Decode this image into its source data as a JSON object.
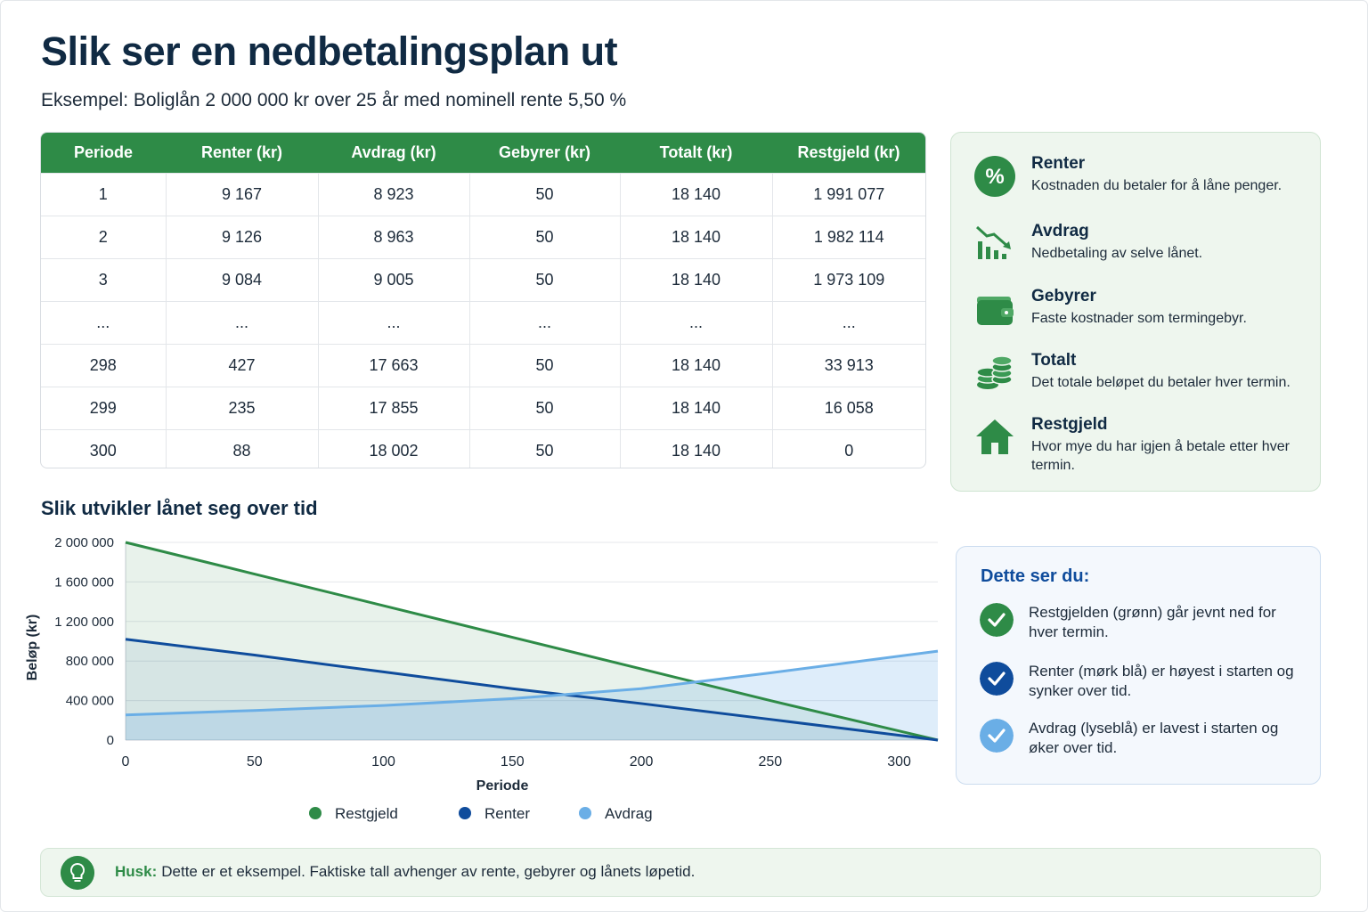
{
  "header": {
    "title": "Slik ser en nedbetalingsplan ut",
    "subtitle": "Eksempel: Boliglån 2 000 000 kr over 25 år med nominell rente 5,50 %"
  },
  "table": {
    "headers": [
      "Periode",
      "Renter (kr)",
      "Avdrag (kr)",
      "Gebyrer (kr)",
      "Totalt (kr)",
      "Restgjeld (kr)"
    ],
    "rows": [
      [
        "1",
        "9 167",
        "8 923",
        "50",
        "18 140",
        "1 991 077"
      ],
      [
        "2",
        "9 126",
        "8 963",
        "50",
        "18 140",
        "1 982 114"
      ],
      [
        "3",
        "9 084",
        "9 005",
        "50",
        "18 140",
        "1 973 109"
      ],
      [
        "...",
        "...",
        "...",
        "...",
        "...",
        "..."
      ],
      [
        "298",
        "427",
        "17 663",
        "50",
        "18 140",
        "33 913"
      ],
      [
        "299",
        "235",
        "17 855",
        "50",
        "18 140",
        "16 058"
      ],
      [
        "300",
        "88",
        "18 002",
        "50",
        "18 140",
        "0"
      ]
    ]
  },
  "legend_panel": {
    "items": [
      {
        "icon": "percent-icon",
        "title": "Renter",
        "desc": "Kostnaden du betaler for å låne penger."
      },
      {
        "icon": "chart-down-icon",
        "title": "Avdrag",
        "desc": "Nedbetaling av selve lånet."
      },
      {
        "icon": "wallet-icon",
        "title": "Gebyrer",
        "desc": "Faste kostnader som termingebyr."
      },
      {
        "icon": "coins-icon",
        "title": "Totalt",
        "desc": "Det totale beløpet du betaler hver termin."
      },
      {
        "icon": "house-icon",
        "title": "Restgjeld",
        "desc": "Hvor mye du har igjen å betale etter hver termin."
      }
    ]
  },
  "observations": {
    "title": "Dette ser du:",
    "items": [
      {
        "color": "#2e8b47",
        "text": "Restgjelden (grønn) går jevnt ned for hver termin."
      },
      {
        "color": "#0f4c9c",
        "text": "Renter (mørk blå) er høyest i starten og synker over tid."
      },
      {
        "color": "#6aaee6",
        "text": "Avdrag (lyseblå) er lavest i starten og øker over tid."
      }
    ]
  },
  "note": {
    "label": "Husk:",
    "text": "Dette er et eksempel. Faktiske tall avhenger av rente, gebyrer og lånets løpetid."
  },
  "colors": {
    "green": "#2e8b47",
    "dark_blue": "#0f4c9c",
    "light_blue": "#6aaee6"
  },
  "chart_data": {
    "type": "area",
    "title": "Slik utvikler lånet seg over tid",
    "xlabel": "Periode",
    "ylabel": "Beløp (kr)",
    "xlim": [
      0,
      315
    ],
    "ylim": [
      0,
      2000000
    ],
    "x_ticks": [
      0,
      50,
      100,
      150,
      200,
      250,
      300
    ],
    "y_ticks": [
      0,
      400000,
      800000,
      1200000,
      1600000,
      2000000
    ],
    "y_tick_labels": [
      "0",
      "400 000",
      "800 000",
      "1 200 000",
      "1 600 000",
      "2 000 000"
    ],
    "grid": true,
    "legend_position": "bottom",
    "series": [
      {
        "name": "Restgjeld",
        "color": "#2e8b47",
        "x": [
          0,
          50,
          100,
          150,
          200,
          250,
          315
        ],
        "y": [
          2000000,
          1680000,
          1360000,
          1040000,
          720000,
          400000,
          0
        ]
      },
      {
        "name": "Renter",
        "color": "#0f4c9c",
        "x": [
          0,
          50,
          100,
          150,
          200,
          250,
          315
        ],
        "y": [
          1020000,
          860000,
          690000,
          520000,
          370000,
          210000,
          0
        ]
      },
      {
        "name": "Avdrag",
        "color": "#6aaee6",
        "x": [
          0,
          50,
          100,
          150,
          200,
          250,
          315
        ],
        "y": [
          255000,
          300000,
          350000,
          420000,
          520000,
          680000,
          900000
        ]
      }
    ]
  }
}
